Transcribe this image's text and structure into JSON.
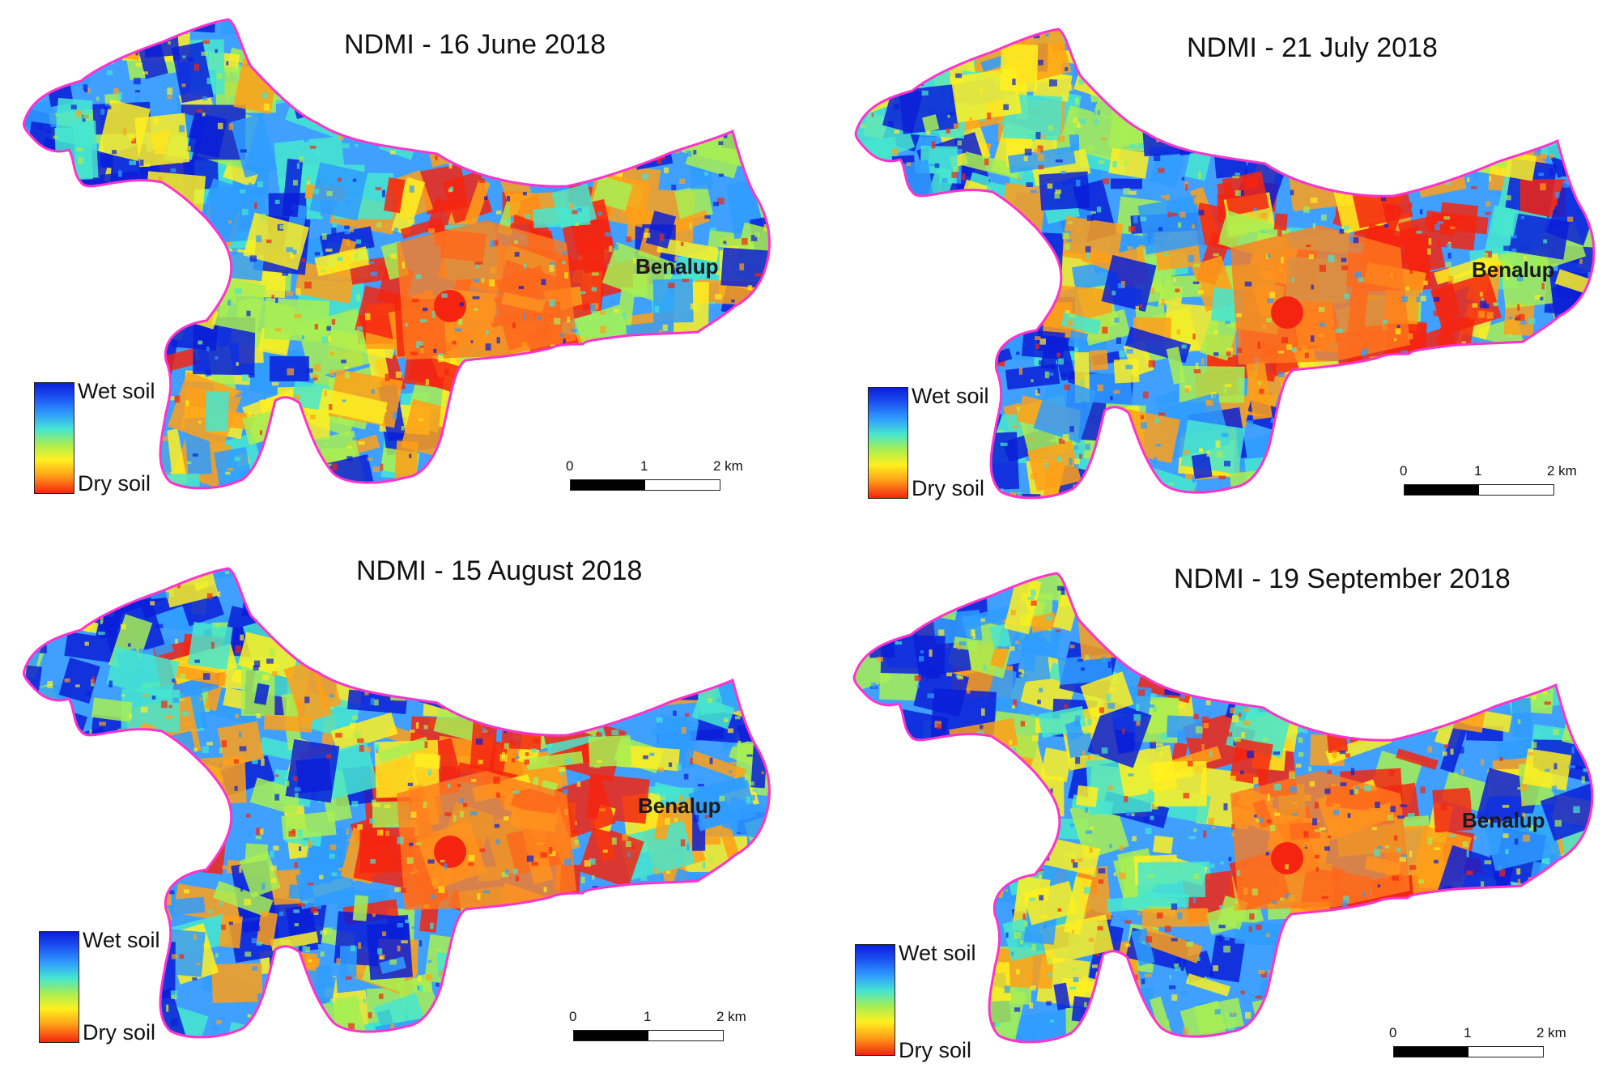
{
  "panels": [
    {
      "title": "NDMI - 16 June 2018",
      "town": "Benalup"
    },
    {
      "title": "NDMI - 21 July 2018",
      "town": "Benalup"
    },
    {
      "title": "NDMI - 15 August 2018",
      "town": "Benalup"
    },
    {
      "title": "NDMI - 19 September 2018",
      "town": "Benalup"
    }
  ],
  "legend": {
    "top_label": "Wet soil",
    "bottom_label": "Dry soil",
    "colors": [
      "#0a1ed8",
      "#2f9cff",
      "#46e6cf",
      "#a8ee52",
      "#fff020",
      "#ffa018",
      "#f52410"
    ]
  },
  "scale": {
    "ticks": [
      "0",
      "1",
      "2 km"
    ]
  },
  "outline_color": "#ff33cc"
}
